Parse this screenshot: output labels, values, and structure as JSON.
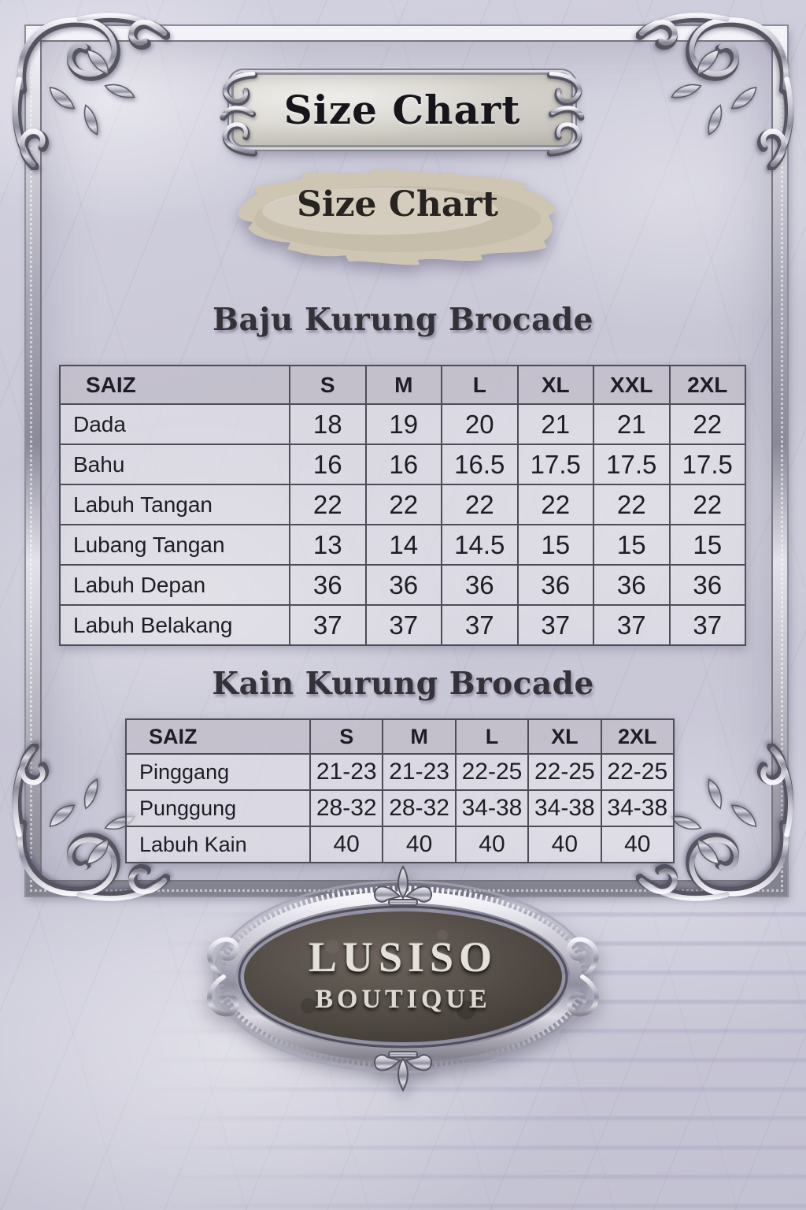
{
  "page": {
    "title_plaque": "Size Chart",
    "banner_title": "Size Chart"
  },
  "sections": [
    {
      "title": "Baju Kurung Brocade",
      "table": {
        "headers": [
          "SAIZ",
          "S",
          "M",
          "L",
          "XL",
          "XXL",
          "2XL"
        ],
        "rows": [
          {
            "label": "Dada",
            "values": [
              "18",
              "19",
              "20",
              "21",
              "21",
              "22"
            ]
          },
          {
            "label": "Bahu",
            "values": [
              "16",
              "16",
              "16.5",
              "17.5",
              "17.5",
              "17.5"
            ]
          },
          {
            "label": "Labuh Tangan",
            "values": [
              "22",
              "22",
              "22",
              "22",
              "22",
              "22"
            ]
          },
          {
            "label": "Lubang Tangan",
            "values": [
              "13",
              "14",
              "14.5",
              "15",
              "15",
              "15"
            ]
          },
          {
            "label": "Labuh Depan",
            "values": [
              "36",
              "36",
              "36",
              "36",
              "36",
              "36"
            ]
          },
          {
            "label": "Labuh Belakang",
            "values": [
              "37",
              "37",
              "37",
              "37",
              "37",
              "37"
            ]
          }
        ]
      }
    },
    {
      "title": "Kain Kurung Brocade",
      "table": {
        "headers": [
          "SAIZ",
          "S",
          "M",
          "L",
          "XL",
          "2XL"
        ],
        "rows": [
          {
            "label": "Pinggang",
            "values": [
              "21-23",
              "21-23",
              "22-25",
              "22-25",
              "22-25"
            ]
          },
          {
            "label": "Punggung",
            "values": [
              "28-32",
              "28-32",
              "34-38",
              "34-38",
              "34-38"
            ]
          },
          {
            "label": "Labuh Kain",
            "values": [
              "40",
              "40",
              "40",
              "40",
              "40"
            ]
          }
        ]
      }
    }
  ],
  "logo": {
    "brand": "LUSISO",
    "tagline": "BOUTIQUE"
  },
  "ornaments": {
    "frame_corners": "baroque-flourish",
    "plaque_sides": "scroll-flourish",
    "medallion_top": "fleur-de-lis",
    "medallion_bottom": "fleur-de-lis"
  },
  "colors": {
    "background_marble": "#c8c7d5",
    "silver": "#c6c5d1",
    "table_line": "#4e4c57",
    "table_cell_bg": "#e5e3ea",
    "text_dark": "#1f1d24",
    "plaque_stone": "#d8d5ce",
    "banner_paper": "#cec5b3",
    "medallion_stone": "#453e3a",
    "medallion_text": "#e5e1da"
  }
}
